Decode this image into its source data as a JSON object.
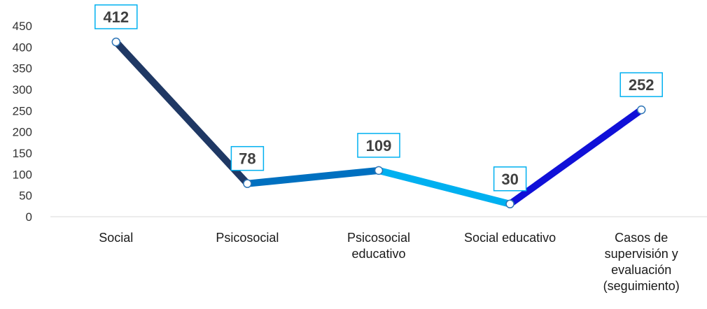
{
  "chart_data": {
    "type": "line",
    "title": "",
    "xlabel": "",
    "ylabel": "",
    "categories": [
      [
        "Social"
      ],
      [
        "Psicosocial"
      ],
      [
        "Psicosocial",
        "educativo"
      ],
      [
        "Social educativo"
      ],
      [
        "Casos de",
        "supervisión y",
        "evaluación",
        "(seguimiento)"
      ]
    ],
    "values": [
      412,
      78,
      109,
      30,
      252
    ],
    "data_labels": [
      "412",
      "78",
      "109",
      "30",
      "252"
    ],
    "yticks": [
      "0",
      "50",
      "100",
      "150",
      "200",
      "250",
      "300",
      "350",
      "400",
      "450"
    ],
    "ylim": [
      0,
      450
    ],
    "grid": false,
    "legend": "none",
    "segment_colors": [
      "#1f3864",
      "#0070c0",
      "#00b0f0",
      "#1010d8"
    ],
    "label_border_color": "#00b0f0",
    "marker_fill": "#ffffff",
    "marker_stroke": "#2e75b6"
  }
}
